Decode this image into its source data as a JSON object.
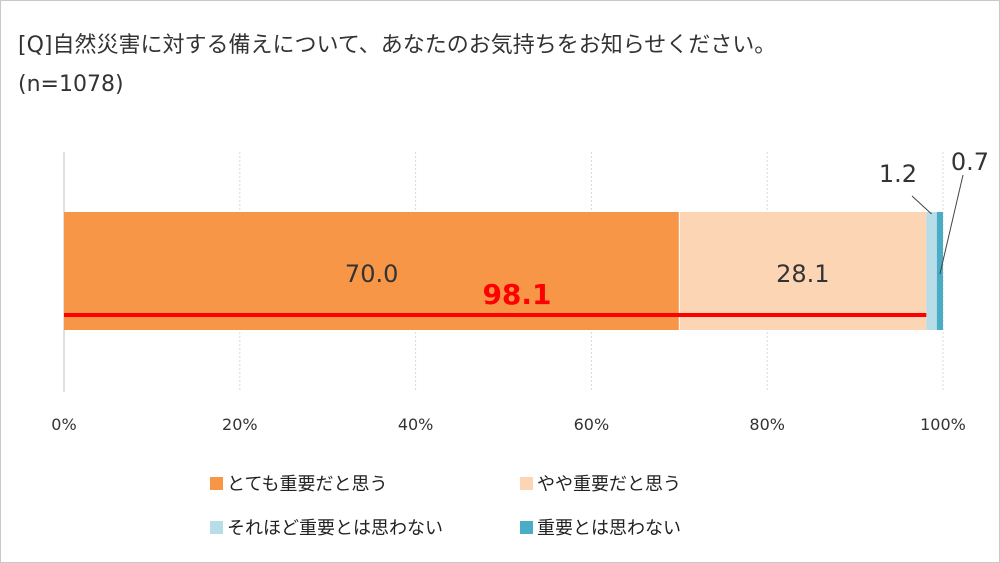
{
  "header": {
    "title": "[Q]自然災害に対する備えについて、あなたのお気持ちをお知らせください。",
    "sample": "(n=1078)"
  },
  "chart_data": {
    "type": "bar",
    "orientation": "horizontal-stacked-100",
    "xlim": [
      0,
      100
    ],
    "ticks": [
      "0%",
      "20%",
      "40%",
      "60%",
      "80%",
      "100%"
    ],
    "tick_values": [
      0,
      20,
      40,
      60,
      80,
      100
    ],
    "grid": true,
    "legend_position": "bottom",
    "series": [
      {
        "name": "とても重要だと思う",
        "value": 70.0,
        "label": "70.0",
        "color": "#f79646"
      },
      {
        "name": "やや重要だと思う",
        "value": 28.1,
        "label": "28.1",
        "color": "#fcd5b5"
      },
      {
        "name": "それほど重要とは思わない",
        "value": 1.2,
        "label": "1.2",
        "color": "#b7dde8"
      },
      {
        "name": "重要とは思わない",
        "value": 0.7,
        "label": "0.7",
        "color": "#4bacc6"
      }
    ],
    "annotation": {
      "label": "98.1",
      "value": 98.1,
      "color": "#ff0000"
    }
  }
}
